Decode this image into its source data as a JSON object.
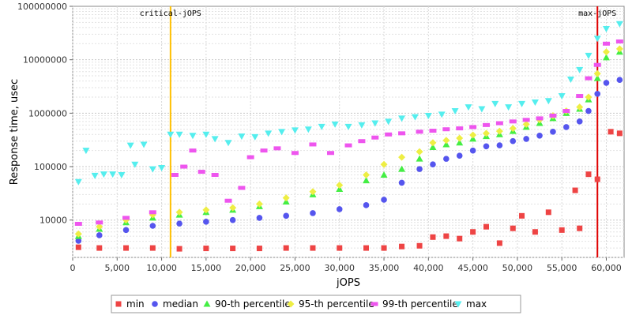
{
  "chart_data": {
    "type": "scatter",
    "xlabel": "jOPS",
    "ylabel": "Response time, usec",
    "xlim": [
      0,
      62000
    ],
    "ylim": [
      2000,
      100000000
    ],
    "y_scale": "log",
    "grid": true,
    "legend_position": "bottom",
    "x_ticks": [
      0,
      5000,
      10000,
      15000,
      20000,
      25000,
      30000,
      35000,
      40000,
      45000,
      50000,
      55000,
      60000
    ],
    "x_tick_labels": [
      "0",
      "5,000",
      "10,000",
      "15,000",
      "20,000",
      "25,000",
      "30,000",
      "35,000",
      "40,000",
      "45,000",
      "50,000",
      "55,000",
      "60,000"
    ],
    "y_ticks": [
      10000,
      100000,
      1000000,
      10000000,
      100000000
    ],
    "y_tick_labels": [
      "10000",
      "100000",
      "1000000",
      "10000000",
      "100000000"
    ],
    "annotations": [
      {
        "label": "critical-jOPS",
        "x": 11000,
        "color": "#ffc000"
      },
      {
        "label": "max-jOPS",
        "x": 59000,
        "color": "#e00000"
      }
    ],
    "series": [
      {
        "name": "min",
        "color": "#ee4444",
        "marker": "square",
        "points": [
          [
            650,
            3100
          ],
          [
            3000,
            3000
          ],
          [
            6000,
            3000
          ],
          [
            9000,
            3000
          ],
          [
            12000,
            2900
          ],
          [
            15000,
            2950
          ],
          [
            18000,
            2950
          ],
          [
            21000,
            2950
          ],
          [
            24000,
            3000
          ],
          [
            27000,
            3000
          ],
          [
            30000,
            3000
          ],
          [
            33000,
            3000
          ],
          [
            35000,
            3000
          ],
          [
            37000,
            3200
          ],
          [
            39000,
            3300
          ],
          [
            40500,
            4800
          ],
          [
            42000,
            5000
          ],
          [
            43500,
            4500
          ],
          [
            45000,
            6000
          ],
          [
            46500,
            7500
          ],
          [
            48000,
            3700
          ],
          [
            49500,
            7000
          ],
          [
            50500,
            12000
          ],
          [
            52000,
            6000
          ],
          [
            53500,
            14000
          ],
          [
            55000,
            6500
          ],
          [
            56500,
            36000
          ],
          [
            57000,
            7000
          ],
          [
            58000,
            72000
          ],
          [
            59000,
            58000
          ],
          [
            60500,
            450000
          ],
          [
            61500,
            420000
          ]
        ]
      },
      {
        "name": "median",
        "color": "#5555ee",
        "marker": "circle",
        "points": [
          [
            650,
            4100
          ],
          [
            3000,
            5200
          ],
          [
            6000,
            6500
          ],
          [
            9000,
            7800
          ],
          [
            12000,
            8600
          ],
          [
            15000,
            9300
          ],
          [
            18000,
            10000
          ],
          [
            21000,
            11000
          ],
          [
            24000,
            12000
          ],
          [
            27000,
            13500
          ],
          [
            30000,
            16000
          ],
          [
            33000,
            19000
          ],
          [
            35000,
            24000
          ],
          [
            37000,
            50000
          ],
          [
            39000,
            90000
          ],
          [
            40500,
            110000
          ],
          [
            42000,
            140000
          ],
          [
            43500,
            160000
          ],
          [
            45000,
            200000
          ],
          [
            46500,
            240000
          ],
          [
            48000,
            250000
          ],
          [
            49500,
            300000
          ],
          [
            51000,
            330000
          ],
          [
            52500,
            380000
          ],
          [
            54000,
            450000
          ],
          [
            55500,
            550000
          ],
          [
            57000,
            700000
          ],
          [
            58000,
            1100000
          ],
          [
            59000,
            2300000
          ],
          [
            60000,
            3700000
          ],
          [
            61500,
            4200000
          ]
        ]
      },
      {
        "name": "90-th percentile",
        "color": "#44ee44",
        "marker": "triangle",
        "points": [
          [
            650,
            5000
          ],
          [
            3000,
            6800
          ],
          [
            6000,
            9000
          ],
          [
            9000,
            11000
          ],
          [
            12000,
            12500
          ],
          [
            15000,
            14000
          ],
          [
            18000,
            15500
          ],
          [
            21000,
            18000
          ],
          [
            24000,
            22000
          ],
          [
            27000,
            30000
          ],
          [
            30000,
            38000
          ],
          [
            33000,
            55000
          ],
          [
            35000,
            70000
          ],
          [
            37000,
            90000
          ],
          [
            39000,
            140000
          ],
          [
            40500,
            230000
          ],
          [
            42000,
            260000
          ],
          [
            43500,
            280000
          ],
          [
            45000,
            330000
          ],
          [
            46500,
            370000
          ],
          [
            48000,
            400000
          ],
          [
            49500,
            460000
          ],
          [
            51000,
            550000
          ],
          [
            52500,
            650000
          ],
          [
            54000,
            800000
          ],
          [
            55500,
            1000000
          ],
          [
            57000,
            1200000
          ],
          [
            58000,
            1800000
          ],
          [
            59000,
            4500000
          ],
          [
            60000,
            11000000
          ],
          [
            61500,
            14000000
          ]
        ]
      },
      {
        "name": "95-th percentile",
        "color": "#eeee44",
        "marker": "diamond",
        "points": [
          [
            650,
            5500
          ],
          [
            3000,
            7500
          ],
          [
            6000,
            10000
          ],
          [
            9000,
            12500
          ],
          [
            12000,
            14000
          ],
          [
            15000,
            15500
          ],
          [
            18000,
            17000
          ],
          [
            21000,
            20000
          ],
          [
            24000,
            26000
          ],
          [
            27000,
            34000
          ],
          [
            30000,
            45000
          ],
          [
            33000,
            70000
          ],
          [
            35000,
            110000
          ],
          [
            37000,
            150000
          ],
          [
            39000,
            190000
          ],
          [
            40500,
            280000
          ],
          [
            42000,
            310000
          ],
          [
            43500,
            340000
          ],
          [
            45000,
            390000
          ],
          [
            46500,
            420000
          ],
          [
            48000,
            460000
          ],
          [
            49500,
            520000
          ],
          [
            51000,
            620000
          ],
          [
            52500,
            750000
          ],
          [
            54000,
            900000
          ],
          [
            55500,
            1100000
          ],
          [
            57000,
            1300000
          ],
          [
            58000,
            2000000
          ],
          [
            59000,
            5500000
          ],
          [
            60000,
            14000000
          ],
          [
            61500,
            16000000
          ]
        ]
      },
      {
        "name": "99-th percentile",
        "color": "#ee55ee",
        "marker": "rect",
        "points": [
          [
            650,
            8500
          ],
          [
            3000,
            9000
          ],
          [
            6000,
            11000
          ],
          [
            9000,
            14000
          ],
          [
            11500,
            70000
          ],
          [
            12500,
            100000
          ],
          [
            13500,
            200000
          ],
          [
            14500,
            80000
          ],
          [
            16000,
            70000
          ],
          [
            17500,
            23000
          ],
          [
            19000,
            40000
          ],
          [
            20000,
            150000
          ],
          [
            21500,
            200000
          ],
          [
            23000,
            220000
          ],
          [
            25000,
            180000
          ],
          [
            27000,
            260000
          ],
          [
            29000,
            180000
          ],
          [
            31000,
            250000
          ],
          [
            32500,
            300000
          ],
          [
            34000,
            350000
          ],
          [
            35500,
            400000
          ],
          [
            37000,
            420000
          ],
          [
            39000,
            450000
          ],
          [
            40500,
            470000
          ],
          [
            42000,
            500000
          ],
          [
            43500,
            520000
          ],
          [
            45000,
            550000
          ],
          [
            46500,
            600000
          ],
          [
            48000,
            650000
          ],
          [
            49500,
            700000
          ],
          [
            51000,
            750000
          ],
          [
            52500,
            800000
          ],
          [
            54000,
            900000
          ],
          [
            55500,
            1100000
          ],
          [
            57000,
            2100000
          ],
          [
            58000,
            4500000
          ],
          [
            59000,
            8000000
          ],
          [
            60000,
            20000000
          ],
          [
            61500,
            22000000
          ]
        ]
      },
      {
        "name": "max",
        "color": "#55eeee",
        "marker": "triangle-down",
        "points": [
          [
            650,
            52000
          ],
          [
            1500,
            200000
          ],
          [
            2500,
            68000
          ],
          [
            3500,
            72000
          ],
          [
            4500,
            72000
          ],
          [
            5500,
            70000
          ],
          [
            6500,
            250000
          ],
          [
            7000,
            110000
          ],
          [
            8000,
            260000
          ],
          [
            9000,
            90000
          ],
          [
            10000,
            95000
          ],
          [
            11000,
            400000
          ],
          [
            12000,
            400000
          ],
          [
            13500,
            380000
          ],
          [
            15000,
            400000
          ],
          [
            16000,
            330000
          ],
          [
            17500,
            280000
          ],
          [
            19000,
            370000
          ],
          [
            20500,
            360000
          ],
          [
            22000,
            420000
          ],
          [
            23500,
            450000
          ],
          [
            25000,
            480000
          ],
          [
            26500,
            500000
          ],
          [
            28000,
            560000
          ],
          [
            29500,
            620000
          ],
          [
            31000,
            560000
          ],
          [
            32500,
            600000
          ],
          [
            34000,
            650000
          ],
          [
            35500,
            700000
          ],
          [
            37000,
            800000
          ],
          [
            38500,
            850000
          ],
          [
            40000,
            900000
          ],
          [
            41500,
            950000
          ],
          [
            43000,
            1100000
          ],
          [
            44500,
            1300000
          ],
          [
            46000,
            1200000
          ],
          [
            47500,
            1500000
          ],
          [
            49000,
            1300000
          ],
          [
            50500,
            1500000
          ],
          [
            52000,
            1600000
          ],
          [
            53500,
            1700000
          ],
          [
            55000,
            2100000
          ],
          [
            56000,
            4300000
          ],
          [
            57000,
            6500000
          ],
          [
            58000,
            12000000
          ],
          [
            59000,
            25000000
          ],
          [
            60000,
            38000000
          ],
          [
            61500,
            47000000
          ]
        ]
      }
    ]
  }
}
